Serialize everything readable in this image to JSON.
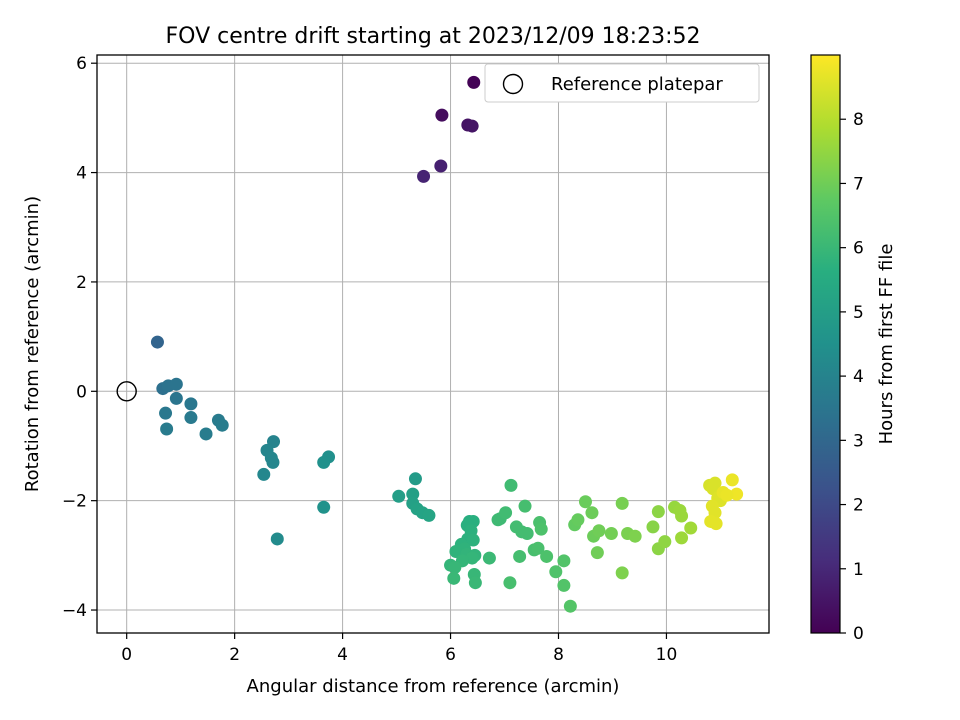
{
  "chart_data": {
    "type": "scatter",
    "title": "FOV centre drift starting at 2023/12/09 18:23:52",
    "xlabel": "Angular distance from reference (arcmin)",
    "ylabel": "Rotation from reference (arcmin)",
    "xlim": [
      -0.55,
      11.9
    ],
    "ylim": [
      -4.42,
      6.15
    ],
    "xticks": [
      0,
      2,
      4,
      6,
      8,
      10
    ],
    "yticks": [
      -4,
      -2,
      0,
      2,
      4,
      6
    ],
    "grid": true,
    "legend": {
      "placement": "top-right",
      "entries": [
        {
          "label": "Reference platepar",
          "marker": "open-circle"
        }
      ]
    },
    "reference_point": {
      "x": 0,
      "y": 0
    },
    "colorbar": {
      "label": "Hours from first FF file",
      "colormap": "viridis",
      "range": [
        0,
        9.0
      ],
      "ticks": [
        0,
        1,
        2,
        3,
        4,
        5,
        6,
        7,
        8
      ]
    },
    "points": [
      {
        "x": 6.43,
        "y": 5.65,
        "h": 0.05
      },
      {
        "x": 5.84,
        "y": 5.05,
        "h": 0.3
      },
      {
        "x": 6.32,
        "y": 4.87,
        "h": 0.45
      },
      {
        "x": 6.4,
        "y": 4.85,
        "h": 0.5
      },
      {
        "x": 5.82,
        "y": 4.12,
        "h": 0.8
      },
      {
        "x": 5.5,
        "y": 3.93,
        "h": 0.9
      },
      {
        "x": 0.57,
        "y": 0.9,
        "h": 2.9
      },
      {
        "x": 0.67,
        "y": 0.05,
        "h": 3.3
      },
      {
        "x": 0.77,
        "y": 0.1,
        "h": 3.4
      },
      {
        "x": 0.92,
        "y": 0.13,
        "h": 3.45
      },
      {
        "x": 0.92,
        "y": -0.13,
        "h": 3.5
      },
      {
        "x": 1.19,
        "y": -0.23,
        "h": 3.55
      },
      {
        "x": 0.72,
        "y": -0.4,
        "h": 3.6
      },
      {
        "x": 1.19,
        "y": -0.48,
        "h": 3.65
      },
      {
        "x": 0.74,
        "y": -0.69,
        "h": 3.7
      },
      {
        "x": 1.47,
        "y": -0.78,
        "h": 3.75
      },
      {
        "x": 1.7,
        "y": -0.53,
        "h": 3.7
      },
      {
        "x": 1.77,
        "y": -0.62,
        "h": 3.75
      },
      {
        "x": 2.72,
        "y": -0.92,
        "h": 4.0
      },
      {
        "x": 2.6,
        "y": -1.08,
        "h": 4.05
      },
      {
        "x": 2.68,
        "y": -1.22,
        "h": 4.1
      },
      {
        "x": 2.71,
        "y": -1.3,
        "h": 4.1
      },
      {
        "x": 2.54,
        "y": -1.52,
        "h": 4.15
      },
      {
        "x": 2.79,
        "y": -2.7,
        "h": 4.3
      },
      {
        "x": 3.74,
        "y": -1.2,
        "h": 4.45
      },
      {
        "x": 3.65,
        "y": -1.3,
        "h": 4.5
      },
      {
        "x": 3.65,
        "y": -2.12,
        "h": 4.55
      },
      {
        "x": 5.35,
        "y": -1.6,
        "h": 4.9
      },
      {
        "x": 5.04,
        "y": -1.92,
        "h": 5.0
      },
      {
        "x": 5.3,
        "y": -1.88,
        "h": 5.05
      },
      {
        "x": 5.3,
        "y": -2.05,
        "h": 5.1
      },
      {
        "x": 5.38,
        "y": -2.15,
        "h": 5.15
      },
      {
        "x": 5.48,
        "y": -2.22,
        "h": 5.2
      },
      {
        "x": 5.6,
        "y": -2.27,
        "h": 5.25
      },
      {
        "x": 6.35,
        "y": -2.38,
        "h": 5.6
      },
      {
        "x": 6.42,
        "y": -2.38,
        "h": 5.65
      },
      {
        "x": 6.31,
        "y": -2.45,
        "h": 5.65
      },
      {
        "x": 6.38,
        "y": -2.55,
        "h": 5.7
      },
      {
        "x": 6.32,
        "y": -2.7,
        "h": 5.7
      },
      {
        "x": 6.42,
        "y": -2.72,
        "h": 5.75
      },
      {
        "x": 6.2,
        "y": -2.8,
        "h": 5.75
      },
      {
        "x": 6.26,
        "y": -2.88,
        "h": 5.8
      },
      {
        "x": 6.1,
        "y": -2.93,
        "h": 5.8
      },
      {
        "x": 6.3,
        "y": -2.98,
        "h": 5.85
      },
      {
        "x": 6.45,
        "y": -3.0,
        "h": 5.85
      },
      {
        "x": 6.4,
        "y": -3.05,
        "h": 5.9
      },
      {
        "x": 6.22,
        "y": -3.1,
        "h": 5.9
      },
      {
        "x": 6.0,
        "y": -3.18,
        "h": 5.9
      },
      {
        "x": 6.08,
        "y": -3.22,
        "h": 5.95
      },
      {
        "x": 6.44,
        "y": -3.35,
        "h": 5.95
      },
      {
        "x": 6.06,
        "y": -3.42,
        "h": 6.0
      },
      {
        "x": 6.46,
        "y": -3.5,
        "h": 6.0
      },
      {
        "x": 6.72,
        "y": -3.05,
        "h": 6.05
      },
      {
        "x": 6.88,
        "y": -2.35,
        "h": 6.1
      },
      {
        "x": 6.92,
        "y": -2.33,
        "h": 6.1
      },
      {
        "x": 7.02,
        "y": -2.22,
        "h": 6.15
      },
      {
        "x": 7.12,
        "y": -1.72,
        "h": 6.15
      },
      {
        "x": 7.22,
        "y": -2.48,
        "h": 6.2
      },
      {
        "x": 7.32,
        "y": -2.57,
        "h": 6.2
      },
      {
        "x": 7.42,
        "y": -2.6,
        "h": 6.2
      },
      {
        "x": 7.38,
        "y": -2.1,
        "h": 6.25
      },
      {
        "x": 7.28,
        "y": -3.02,
        "h": 6.25
      },
      {
        "x": 7.1,
        "y": -3.5,
        "h": 6.3
      },
      {
        "x": 7.55,
        "y": -2.9,
        "h": 6.3
      },
      {
        "x": 7.62,
        "y": -2.87,
        "h": 6.35
      },
      {
        "x": 7.65,
        "y": -2.4,
        "h": 6.35
      },
      {
        "x": 7.68,
        "y": -2.52,
        "h": 6.4
      },
      {
        "x": 7.78,
        "y": -3.02,
        "h": 6.4
      },
      {
        "x": 7.95,
        "y": -3.3,
        "h": 6.45
      },
      {
        "x": 8.1,
        "y": -3.1,
        "h": 6.5
      },
      {
        "x": 8.1,
        "y": -3.55,
        "h": 6.5
      },
      {
        "x": 8.22,
        "y": -3.93,
        "h": 6.55
      },
      {
        "x": 8.3,
        "y": -2.44,
        "h": 6.8
      },
      {
        "x": 8.36,
        "y": -2.35,
        "h": 6.85
      },
      {
        "x": 8.5,
        "y": -2.02,
        "h": 6.9
      },
      {
        "x": 8.62,
        "y": -2.22,
        "h": 6.95
      },
      {
        "x": 8.65,
        "y": -2.65,
        "h": 6.95
      },
      {
        "x": 8.75,
        "y": -2.55,
        "h": 7.0
      },
      {
        "x": 8.72,
        "y": -2.95,
        "h": 7.0
      },
      {
        "x": 8.98,
        "y": -2.6,
        "h": 7.05
      },
      {
        "x": 9.18,
        "y": -2.05,
        "h": 7.1
      },
      {
        "x": 9.28,
        "y": -2.6,
        "h": 7.15
      },
      {
        "x": 9.42,
        "y": -2.65,
        "h": 7.2
      },
      {
        "x": 9.18,
        "y": -3.32,
        "h": 7.2
      },
      {
        "x": 9.75,
        "y": -2.48,
        "h": 7.35
      },
      {
        "x": 9.85,
        "y": -2.2,
        "h": 7.4
      },
      {
        "x": 9.85,
        "y": -2.88,
        "h": 7.4
      },
      {
        "x": 9.97,
        "y": -2.75,
        "h": 7.45
      },
      {
        "x": 10.15,
        "y": -2.12,
        "h": 7.55
      },
      {
        "x": 10.25,
        "y": -2.18,
        "h": 7.6
      },
      {
        "x": 10.28,
        "y": -2.28,
        "h": 7.6
      },
      {
        "x": 10.28,
        "y": -2.68,
        "h": 7.65
      },
      {
        "x": 10.45,
        "y": -2.5,
        "h": 7.7
      },
      {
        "x": 10.8,
        "y": -1.72,
        "h": 8.45
      },
      {
        "x": 10.9,
        "y": -1.68,
        "h": 8.5
      },
      {
        "x": 10.86,
        "y": -1.78,
        "h": 8.5
      },
      {
        "x": 10.95,
        "y": -1.95,
        "h": 8.55
      },
      {
        "x": 11.0,
        "y": -2.0,
        "h": 8.55
      },
      {
        "x": 10.85,
        "y": -2.1,
        "h": 8.6
      },
      {
        "x": 10.9,
        "y": -2.22,
        "h": 8.6
      },
      {
        "x": 10.82,
        "y": -2.38,
        "h": 8.65
      },
      {
        "x": 10.92,
        "y": -2.42,
        "h": 8.65
      },
      {
        "x": 11.05,
        "y": -1.85,
        "h": 8.7
      },
      {
        "x": 11.22,
        "y": -1.62,
        "h": 8.75
      },
      {
        "x": 11.3,
        "y": -1.88,
        "h": 8.8
      },
      {
        "x": 11.12,
        "y": -1.9,
        "h": 8.75
      }
    ]
  }
}
